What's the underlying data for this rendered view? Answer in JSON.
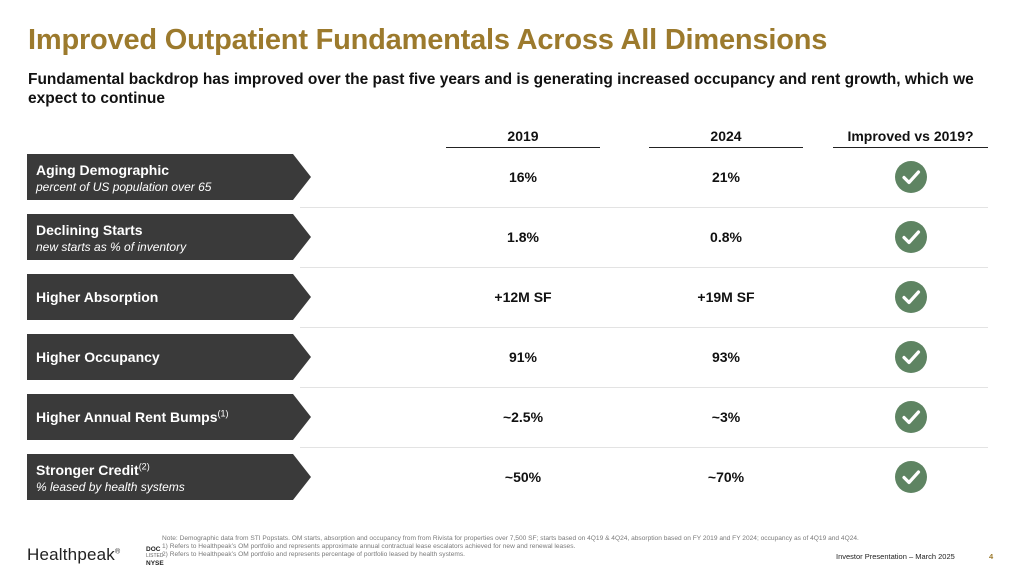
{
  "title": "Improved Outpatient Fundamentals Across All Dimensions",
  "subtitle": "Fundamental backdrop has improved over the past five years and is generating increased occupancy and rent growth, which we expect to continue",
  "columns": {
    "c2019": "2019",
    "c2024": "2024",
    "improved": "Improved vs 2019?"
  },
  "rows": [
    {
      "label": "Aging Demographic",
      "sup": "",
      "sub": "percent of US population over 65",
      "v2019": "16%",
      "v2024": "21%",
      "improved": true
    },
    {
      "label": "Declining Starts",
      "sup": "",
      "sub": "new starts as % of inventory",
      "v2019": "1.8%",
      "v2024": "0.8%",
      "improved": true
    },
    {
      "label": "Higher Absorption",
      "sup": "",
      "sub": "",
      "v2019": "+12M SF",
      "v2024": "+19M SF",
      "improved": true
    },
    {
      "label": "Higher Occupancy",
      "sup": "",
      "sub": "",
      "v2019": "91%",
      "v2024": "93%",
      "improved": true
    },
    {
      "label": "Higher Annual Rent Bumps",
      "sup": "(1)",
      "sub": "",
      "v2019": "~2.5%",
      "v2024": "~3%",
      "improved": true
    },
    {
      "label": "Stronger Credit",
      "sup": "(2)",
      "sub": "% leased by health systems",
      "v2019": "~50%",
      "v2024": "~70%",
      "improved": true
    }
  ],
  "footer": {
    "logo": "Healthpeak",
    "logo_mark": "®",
    "ticker_top": "DOC",
    "ticker_mid": "LISTED",
    "ticker_bottom": "NYSE",
    "note": "Note: Demographic data from STI Popstats. OM starts, absorption and occupancy from from Rivista for properties over 7,500 SF; starts based on 4Q19 & 4Q24, absorption based on FY 2019 and FY 2024; occupancy as of 4Q19 and 4Q24.",
    "footnote1": "1)      Refers to Healthpeak’s OM portfolio and represents approximate annual contractual lease escalators achieved for new and renewal leases.",
    "footnote2": "2)      Refers to Healthpeak’s OM portfolio and represents percentage of portfolio leased by health systems.",
    "presentation": "Investor Presentation – March 2025",
    "page": "4"
  },
  "colors": {
    "title": "#9c7a2d",
    "arrow": "#3a3a3a",
    "check": "#5e8462"
  },
  "icons": {
    "improved": "checkmark-circle-icon"
  }
}
